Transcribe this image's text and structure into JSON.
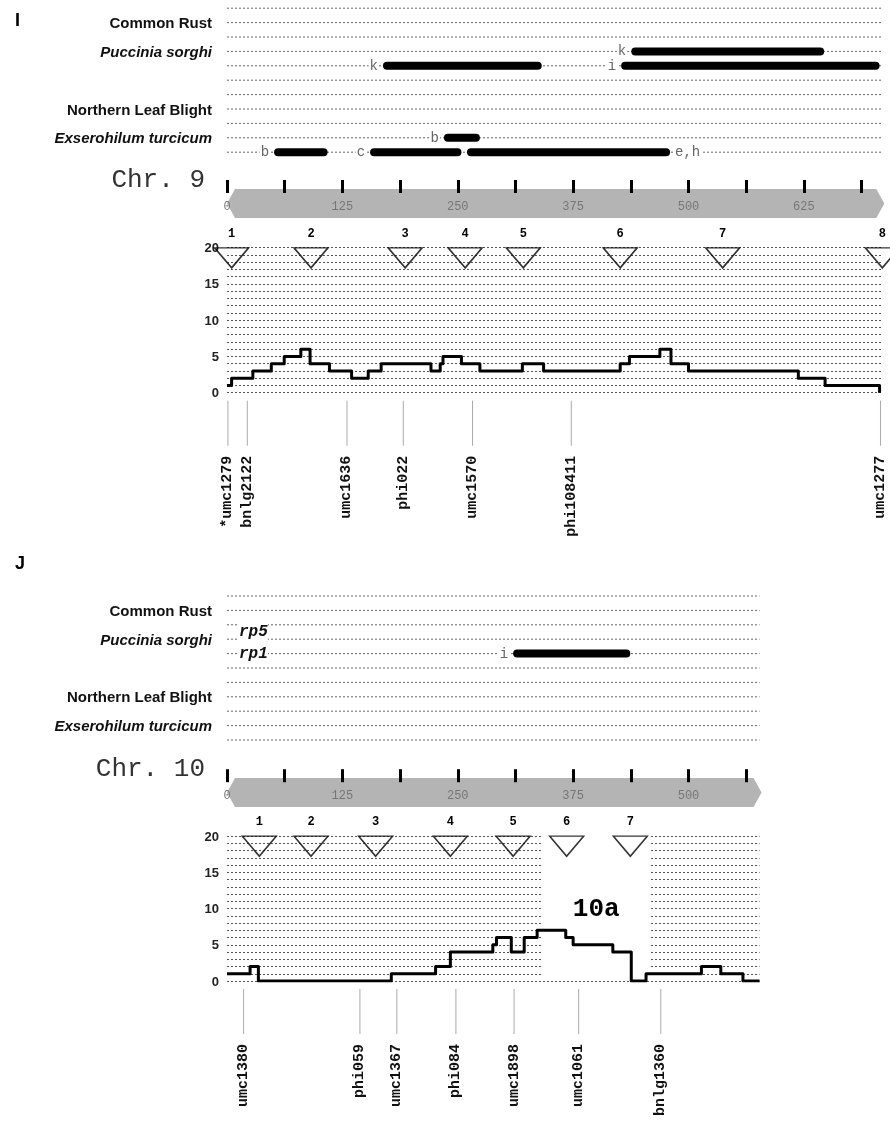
{
  "chart_data": [
    {
      "type": "bar",
      "orientation": "horizontal",
      "title": "I",
      "categories": [
        null,
        "Common Rust",
        null,
        "Puccinia sorghi",
        null,
        null,
        null,
        "Northern Leaf Blight",
        null,
        "Exserohilum turcicum",
        null
      ],
      "xlabel": "Chr. 9",
      "xlim": [
        0,
        710
      ],
      "xticks": [
        0,
        125,
        250,
        375,
        500,
        625
      ],
      "grid": true,
      "series": [
        {
          "color": "#000000",
          "values": [
            null,
            null,
            null,
            209,
            172,
            null,
            null,
            null,
            null,
            39,
            58
          ],
          "base": [
            null,
            null,
            null,
            438,
            169,
            null,
            null,
            null,
            null,
            235,
            51
          ],
          "value_labels": [
            null,
            null,
            null,
            "k",
            "k",
            null,
            null,
            null,
            null,
            "b",
            "b"
          ]
        },
        {
          "color": "#000000",
          "values": [
            null,
            null,
            null,
            null,
            280,
            null,
            null,
            null,
            null,
            null,
            99
          ],
          "base": [
            null,
            null,
            null,
            null,
            427,
            null,
            null,
            null,
            null,
            null,
            155
          ],
          "value_labels": [
            null,
            null,
            null,
            null,
            "i",
            null,
            null,
            null,
            null,
            null,
            "c"
          ]
        },
        {
          "color": "#000000",
          "values": [
            null,
            null,
            null,
            null,
            null,
            null,
            null,
            null,
            null,
            null,
            220
          ],
          "base": [
            null,
            null,
            null,
            null,
            null,
            null,
            null,
            null,
            null,
            null,
            260
          ],
          "value_labels": [
            null,
            null,
            null,
            null,
            null,
            null,
            null,
            null,
            null,
            null,
            "e,h"
          ]
        }
      ]
    },
    {
      "type": "step",
      "xlim": [
        0,
        710
      ],
      "ylim": [
        0,
        20
      ],
      "yticks": [
        0,
        {
          "value": 1,
          "label": null
        },
        {
          "value": 2,
          "label": null
        },
        {
          "value": 3,
          "label": null
        },
        {
          "value": 4,
          "label": null
        },
        5,
        {
          "value": 6,
          "label": null
        },
        {
          "value": 7,
          "label": null
        },
        {
          "value": 8,
          "label": null
        },
        {
          "value": 9,
          "label": null
        },
        10,
        {
          "value": 11,
          "label": null
        },
        {
          "value": 12,
          "label": null
        },
        {
          "value": 13,
          "label": null
        },
        {
          "value": 14,
          "label": null
        },
        15,
        {
          "value": 16,
          "label": null
        },
        {
          "value": 17,
          "label": null
        },
        {
          "value": 18,
          "label": null
        },
        {
          "value": 19,
          "label": null
        },
        20
      ],
      "tick_labels": "y",
      "grid": "y",
      "ref_lines": [
        {
          "axis": "x",
          "value": 1,
          "label": "*umc1279"
        },
        {
          "axis": "x",
          "value": 22,
          "label": "bnlg2122"
        },
        {
          "axis": "x",
          "value": 130,
          "label": "umc1636"
        },
        {
          "axis": "x",
          "value": 191,
          "label": "phi022"
        },
        {
          "axis": "x",
          "value": 266,
          "label": "umc1570"
        },
        {
          "axis": "x",
          "value": 373,
          "label": "phi108411"
        },
        {
          "axis": "x",
          "value": 708,
          "label": "umc1277"
        }
      ],
      "annotations": [
        {
          "text": "1",
          "x": 5,
          "y": 18.6
        },
        {
          "text": "2",
          "x": 91,
          "y": 18.6
        },
        {
          "text": "3",
          "x": 193,
          "y": 18.6
        },
        {
          "text": "4",
          "x": 258,
          "y": 18.6
        },
        {
          "text": "5",
          "x": 321,
          "y": 18.6
        },
        {
          "text": "6",
          "x": 426,
          "y": 18.6
        },
        {
          "text": "7",
          "x": 537,
          "y": 18.6
        },
        {
          "text": "8",
          "x": 710,
          "y": 18.6
        }
      ],
      "series": [
        {
          "type": "step",
          "color": "#000000",
          "x": [
            0,
            5,
            28,
            48,
            62,
            80,
            90,
            111,
            135,
            153,
            167,
            221,
            231,
            234,
            254,
            274,
            320,
            343,
            426,
            436,
            469,
            481,
            500,
            619,
            648,
            707
          ],
          "values": [
            1,
            2,
            3,
            4,
            5,
            6,
            4,
            3,
            2,
            3,
            4,
            3,
            4,
            5,
            4,
            3,
            4,
            3,
            4,
            5,
            6,
            4,
            3,
            2,
            1,
            0
          ]
        },
        {
          "type": "scatter",
          "marker": "triangle",
          "color": "#000000",
          "x": [
            5,
            91,
            193,
            258,
            321,
            426,
            537,
            710
          ],
          "values": [
            18.6,
            18.6,
            18.6,
            18.6,
            18.6,
            18.6,
            18.6,
            18.6
          ]
        }
      ]
    },
    {
      "type": "bar",
      "orientation": "horizontal",
      "title": "J",
      "categories": [
        null,
        "Common Rust",
        null,
        "Puccinia sorghi",
        null,
        null,
        null,
        "Northern Leaf Blight",
        null,
        "Exserohilum turcicum",
        null
      ],
      "xlabel": "Chr. 10",
      "xlim": [
        0,
        577
      ],
      "xticks": [
        0,
        125,
        250,
        375,
        500
      ],
      "grid": true,
      "annotations": [
        "rp5",
        "rp1"
      ],
      "series": [
        {
          "color": "#000000",
          "values": [
            null,
            null,
            null,
            null,
            127,
            null,
            null,
            null,
            null,
            null,
            null
          ],
          "base": [
            null,
            null,
            null,
            null,
            310,
            null,
            null,
            null,
            null,
            null,
            null
          ],
          "value_labels": [
            null,
            null,
            null,
            null,
            "i",
            null,
            null,
            null,
            null,
            null,
            null
          ]
        }
      ]
    },
    {
      "type": "step",
      "xlim": [
        0,
        577
      ],
      "ylim": [
        0,
        20
      ],
      "yticks": [
        0,
        {
          "value": 1,
          "label": null
        },
        {
          "value": 2,
          "label": null
        },
        {
          "value": 3,
          "label": null
        },
        {
          "value": 4,
          "label": null
        },
        5,
        {
          "value": 6,
          "label": null
        },
        {
          "value": 7,
          "label": null
        },
        {
          "value": 8,
          "label": null
        },
        {
          "value": 9,
          "label": null
        },
        10,
        {
          "value": 11,
          "label": null
        },
        {
          "value": 12,
          "label": null
        },
        {
          "value": 13,
          "label": null
        },
        {
          "value": 14,
          "label": null
        },
        15,
        {
          "value": 16,
          "label": null
        },
        {
          "value": 17,
          "label": null
        },
        {
          "value": 18,
          "label": null
        },
        {
          "value": 19,
          "label": null
        },
        20
      ],
      "tick_labels": "y",
      "grid": "y",
      "bands": [
        {
          "axis": "x",
          "from": 342,
          "to": 458,
          "label": "10a",
          "color": "#ffffff"
        }
      ],
      "ref_lines": [
        {
          "axis": "x",
          "value": 18,
          "label": "umc1380"
        },
        {
          "axis": "x",
          "value": 144,
          "label": "phi059"
        },
        {
          "axis": "x",
          "value": 184,
          "label": "umc1367"
        },
        {
          "axis": "x",
          "value": 248,
          "label": "phi084"
        },
        {
          "axis": "x",
          "value": 311,
          "label": "umc1898"
        },
        {
          "axis": "x",
          "value": 381,
          "label": "umc1061"
        },
        {
          "axis": "x",
          "value": 470,
          "label": "bnlg1360"
        }
      ],
      "annotations": [
        {
          "text": "1",
          "x": 35,
          "y": 18.6
        },
        {
          "text": "2",
          "x": 91,
          "y": 18.6
        },
        {
          "text": "3",
          "x": 161,
          "y": 18.6
        },
        {
          "text": "4",
          "x": 242,
          "y": 18.6
        },
        {
          "text": "5",
          "x": 310,
          "y": 18.6
        },
        {
          "text": "6",
          "x": 368,
          "y": 18.6
        },
        {
          "text": "7",
          "x": 437,
          "y": 18.6
        }
      ],
      "series": [
        {
          "type": "step",
          "color": "#000000",
          "x": [
            0,
            25,
            34,
            178,
            226,
            242,
            288,
            292,
            308,
            322,
            336,
            367,
            375,
            418,
            438,
            454,
            514,
            535,
            559,
            577
          ],
          "values": [
            1,
            2,
            0,
            1,
            2,
            4,
            5,
            6,
            4,
            6,
            7,
            6,
            5,
            4,
            0,
            1,
            2,
            1,
            0,
            0
          ]
        },
        {
          "type": "scatter",
          "marker": "triangle",
          "color": "#000000",
          "x": [
            35,
            91,
            161,
            242,
            310,
            368,
            437
          ],
          "values": [
            18.6,
            18.6,
            18.6,
            18.6,
            18.6,
            18.6,
            18.6
          ]
        }
      ]
    }
  ]
}
